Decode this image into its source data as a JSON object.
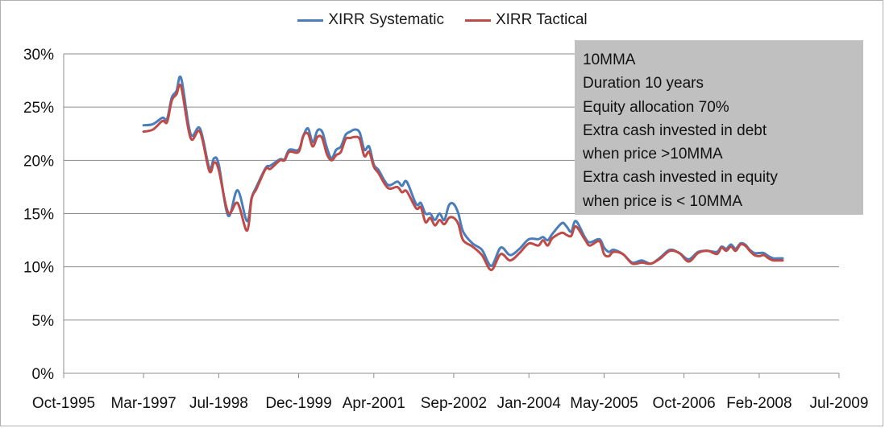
{
  "chart_data": {
    "type": "line",
    "title": "",
    "xlabel": "",
    "ylabel": "",
    "ylim": [
      0,
      30
    ],
    "yticks": [
      "0%",
      "5%",
      "10%",
      "15%",
      "20%",
      "25%",
      "30%"
    ],
    "xlim": [
      "1995-10",
      "2009-07"
    ],
    "xticks": [
      "Oct-1995",
      "Mar-1997",
      "Jul-1998",
      "Dec-1999",
      "Apr-2001",
      "Sep-2002",
      "Jan-2004",
      "May-2005",
      "Oct-2006",
      "Feb-2008",
      "Jul-2009"
    ],
    "grid": "horizontal",
    "legend_position": "top",
    "series": [
      {
        "name": "XIRR Systematic",
        "color": "#4a7ebb",
        "x": [
          "1997-03",
          "1997-05",
          "1997-07",
          "1997-08",
          "1997-09",
          "1997-10",
          "1997-11",
          "1998-01",
          "1998-03",
          "1998-05",
          "1998-06",
          "1998-07",
          "1998-09",
          "1998-11",
          "1999-01",
          "1999-02",
          "1999-03",
          "1999-05",
          "1999-06",
          "1999-08",
          "1999-09",
          "1999-10",
          "1999-12",
          "2000-01",
          "2000-02",
          "2000-03",
          "2000-04",
          "2000-05",
          "2000-06",
          "2000-07",
          "2000-08",
          "2000-09",
          "2000-10",
          "2000-11",
          "2000-12",
          "2001-01",
          "2001-02",
          "2001-03",
          "2001-04",
          "2001-05",
          "2001-07",
          "2001-09",
          "2001-10",
          "2001-11",
          "2002-01",
          "2002-02",
          "2002-03",
          "2002-04",
          "2002-05",
          "2002-06",
          "2002-07",
          "2002-08",
          "2002-09",
          "2002-10",
          "2002-11",
          "2003-01",
          "2003-03",
          "2003-05",
          "2003-07",
          "2003-09",
          "2003-11",
          "2004-01",
          "2004-03",
          "2004-04",
          "2004-05",
          "2004-06",
          "2004-08",
          "2004-09",
          "2004-10",
          "2004-11",
          "2005-01",
          "2005-02",
          "2005-04",
          "2005-05",
          "2005-06",
          "2005-07",
          "2005-09",
          "2005-11",
          "2006-01",
          "2006-03",
          "2006-05",
          "2006-07",
          "2006-09",
          "2006-11",
          "2007-01",
          "2007-03",
          "2007-05",
          "2007-06",
          "2007-07",
          "2007-08",
          "2007-09",
          "2007-10",
          "2007-11",
          "2007-12",
          "2008-01",
          "2008-02",
          "2008-03",
          "2008-04",
          "2008-05",
          "2008-06",
          "2008-07"
        ],
        "values": [
          23.3,
          23.4,
          24.0,
          23.9,
          25.9,
          26.5,
          27.7,
          22.5,
          23.0,
          19.3,
          20.2,
          19.6,
          14.8,
          17.2,
          14.3,
          16.5,
          17.5,
          19.3,
          19.5,
          20.1,
          20.1,
          21.0,
          21.0,
          22.3,
          23.0,
          21.7,
          22.8,
          22.7,
          21.2,
          20.2,
          21.0,
          21.3,
          22.4,
          22.7,
          22.9,
          22.6,
          21.0,
          21.3,
          19.6,
          19.1,
          17.7,
          18.0,
          17.6,
          18.0,
          15.9,
          16.0,
          15.0,
          15.0,
          14.4,
          15.0,
          14.4,
          15.8,
          15.9,
          15.0,
          13.3,
          12.2,
          11.6,
          10.1,
          11.8,
          11.1,
          11.7,
          12.6,
          12.6,
          12.8,
          12.5,
          13.1,
          14.1,
          13.8,
          13.3,
          14.3,
          12.7,
          12.3,
          12.6,
          11.8,
          11.4,
          11.6,
          11.2,
          10.4,
          10.6,
          10.3,
          10.9,
          11.6,
          11.3,
          10.7,
          11.4,
          11.5,
          11.4,
          11.9,
          11.7,
          12.1,
          11.7,
          12.2,
          12.1,
          11.6,
          11.3,
          11.3,
          11.3,
          11.0,
          10.8,
          10.8,
          10.8
        ]
      },
      {
        "name": "XIRR Tactical",
        "color": "#be4b48",
        "x": [
          "1997-03",
          "1997-05",
          "1997-07",
          "1997-08",
          "1997-09",
          "1997-10",
          "1997-11",
          "1998-01",
          "1998-03",
          "1998-05",
          "1998-06",
          "1998-07",
          "1998-09",
          "1998-11",
          "1999-01",
          "1999-02",
          "1999-03",
          "1999-05",
          "1999-06",
          "1999-08",
          "1999-09",
          "1999-10",
          "1999-12",
          "2000-01",
          "2000-02",
          "2000-03",
          "2000-04",
          "2000-05",
          "2000-06",
          "2000-07",
          "2000-08",
          "2000-09",
          "2000-10",
          "2000-11",
          "2000-12",
          "2001-01",
          "2001-02",
          "2001-03",
          "2001-04",
          "2001-05",
          "2001-07",
          "2001-09",
          "2001-10",
          "2001-11",
          "2002-01",
          "2002-02",
          "2002-03",
          "2002-04",
          "2002-05",
          "2002-06",
          "2002-07",
          "2002-08",
          "2002-09",
          "2002-10",
          "2002-11",
          "2003-01",
          "2003-03",
          "2003-05",
          "2003-07",
          "2003-09",
          "2003-11",
          "2004-01",
          "2004-03",
          "2004-04",
          "2004-05",
          "2004-06",
          "2004-08",
          "2004-09",
          "2004-10",
          "2004-11",
          "2005-01",
          "2005-02",
          "2005-04",
          "2005-05",
          "2005-06",
          "2005-07",
          "2005-09",
          "2005-11",
          "2006-01",
          "2006-03",
          "2006-05",
          "2006-07",
          "2006-09",
          "2006-11",
          "2007-01",
          "2007-03",
          "2007-05",
          "2007-06",
          "2007-07",
          "2007-08",
          "2007-09",
          "2007-10",
          "2007-11",
          "2007-12",
          "2008-01",
          "2008-02",
          "2008-03",
          "2008-04",
          "2008-05",
          "2008-06",
          "2008-07"
        ],
        "values": [
          22.7,
          22.9,
          23.7,
          23.6,
          25.6,
          26.2,
          26.9,
          22.1,
          22.7,
          19.0,
          19.8,
          19.1,
          15.1,
          16.0,
          13.4,
          16.4,
          17.3,
          19.2,
          19.2,
          20.0,
          20.0,
          20.8,
          20.8,
          22.3,
          22.5,
          21.3,
          22.2,
          22.1,
          20.6,
          20.0,
          20.5,
          20.8,
          22.0,
          22.1,
          22.2,
          22.0,
          20.4,
          20.8,
          19.4,
          18.8,
          17.4,
          17.5,
          17.0,
          17.1,
          15.5,
          15.6,
          14.2,
          14.6,
          13.9,
          14.4,
          14.0,
          14.6,
          14.6,
          14.0,
          12.5,
          11.9,
          11.1,
          9.7,
          11.2,
          10.6,
          11.3,
          12.2,
          12.0,
          12.5,
          12.0,
          12.7,
          13.2,
          13.0,
          12.9,
          13.8,
          12.5,
          12.0,
          12.4,
          11.2,
          11.0,
          11.4,
          11.2,
          10.3,
          10.4,
          10.3,
          10.8,
          11.5,
          11.3,
          10.5,
          11.3,
          11.5,
          11.2,
          11.8,
          11.5,
          11.9,
          11.5,
          12.1,
          12.0,
          11.5,
          11.1,
          11.0,
          11.1,
          10.8,
          10.6,
          10.6,
          10.6
        ]
      }
    ]
  },
  "annotation": {
    "lines": [
      "10MMA",
      "Duration 10 years",
      "Equity allocation 70%",
      "Extra cash invested in debt",
      "when price >10MMA",
      "Extra cash invested in equity",
      "when price is < 10MMA"
    ]
  }
}
